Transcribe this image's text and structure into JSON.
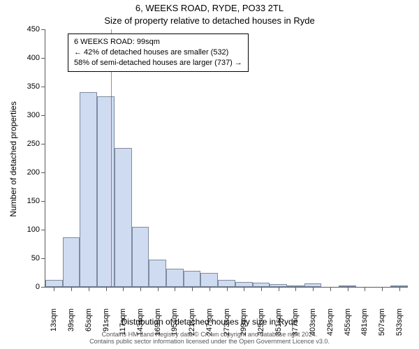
{
  "title_line1": "6, WEEKS ROAD, RYDE, PO33 2TL",
  "title_line2": "Size of property relative to detached houses in Ryde",
  "ylabel": "Number of detached properties",
  "xlabel": "Distribution of detached houses by size in Ryde",
  "footer_line1": "Contains HM Land Registry data © Crown copyright and database right 2024.",
  "footer_line2": "Contains public sector information licensed under the Open Government Licence v3.0.",
  "annotation": {
    "line1": "6 WEEKS ROAD: 99sqm",
    "line2": "← 42% of detached houses are smaller (532)",
    "line3": "58% of semi-detached houses are larger (737) →"
  },
  "chart": {
    "type": "histogram",
    "background_color": "#ffffff",
    "axis_color": "#5a5a5a",
    "bar_fill": "#cfdbf0",
    "bar_border": "#7d8aa0",
    "refline_color": "#e41a1c",
    "refline_x": 99,
    "text_color": "#000000",
    "label_fontsize": 11,
    "title_fontsize": 13,
    "xlim": [
      0,
      546
    ],
    "ylim": [
      0,
      450
    ],
    "ytick_step": 50,
    "yticks": [
      0,
      50,
      100,
      150,
      200,
      250,
      300,
      350,
      400,
      450
    ],
    "xticks": [
      13,
      39,
      65,
      91,
      117,
      143,
      169,
      195,
      221,
      247,
      273,
      299,
      325,
      351,
      377,
      403,
      429,
      455,
      481,
      507,
      533
    ],
    "xtick_suffix": "sqm",
    "bins": [
      {
        "start": 0,
        "end": 26,
        "count": 12
      },
      {
        "start": 26,
        "end": 52,
        "count": 86
      },
      {
        "start": 52,
        "end": 78,
        "count": 340
      },
      {
        "start": 78,
        "end": 104,
        "count": 333
      },
      {
        "start": 104,
        "end": 130,
        "count": 243
      },
      {
        "start": 130,
        "end": 156,
        "count": 105
      },
      {
        "start": 156,
        "end": 182,
        "count": 48
      },
      {
        "start": 182,
        "end": 208,
        "count": 32
      },
      {
        "start": 208,
        "end": 234,
        "count": 28
      },
      {
        "start": 234,
        "end": 260,
        "count": 24
      },
      {
        "start": 260,
        "end": 286,
        "count": 12
      },
      {
        "start": 286,
        "end": 312,
        "count": 9
      },
      {
        "start": 312,
        "end": 338,
        "count": 7
      },
      {
        "start": 338,
        "end": 364,
        "count": 5
      },
      {
        "start": 364,
        "end": 390,
        "count": 3
      },
      {
        "start": 390,
        "end": 416,
        "count": 6
      },
      {
        "start": 416,
        "end": 442,
        "count": 0
      },
      {
        "start": 442,
        "end": 468,
        "count": 2
      },
      {
        "start": 468,
        "end": 494,
        "count": 0
      },
      {
        "start": 494,
        "end": 520,
        "count": 0
      },
      {
        "start": 520,
        "end": 546,
        "count": 2
      }
    ]
  }
}
